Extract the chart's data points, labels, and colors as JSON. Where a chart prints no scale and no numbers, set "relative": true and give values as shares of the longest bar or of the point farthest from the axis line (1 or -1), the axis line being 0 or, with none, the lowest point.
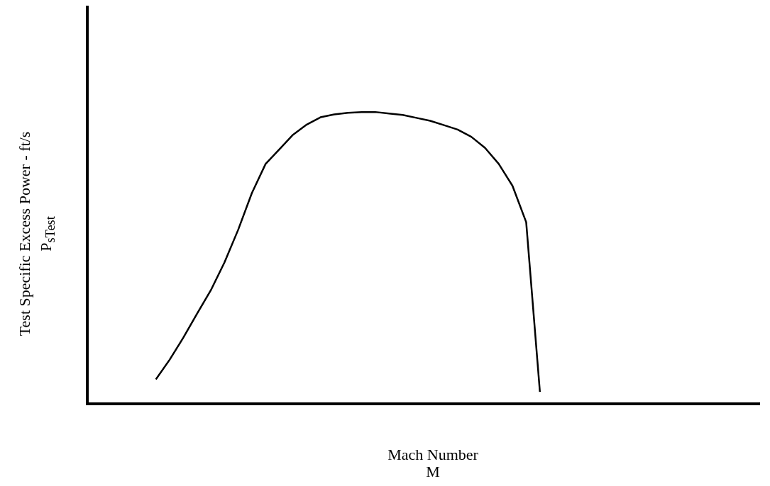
{
  "chart_data": {
    "type": "line",
    "relative": true,
    "xlabel": "Mach Number\nM",
    "ylabel": "Test Specific Excess Power - ft/s\nP$_{s}$$_{Test}$",
    "grid": false,
    "legend": false,
    "marker": "none",
    "line_style": "solid",
    "categories": [
      null,
      null,
      null,
      null,
      null,
      null,
      null,
      null,
      null,
      null,
      null,
      null,
      null,
      null,
      null,
      null,
      null,
      null,
      null,
      null,
      null,
      null,
      null,
      null,
      null,
      null,
      null,
      null,
      null,
      null,
      null,
      null,
      null,
      null,
      null,
      null,
      null,
      null,
      null,
      null,
      null,
      null,
      null,
      null,
      null,
      null,
      null,
      null,
      null,
      null
    ],
    "series": [
      {
        "color": "#000000",
        "values": [
          null,
          null,
          null,
          null,
          null,
          0.083,
          0.15,
          0.226,
          0.308,
          0.388,
          0.484,
          0.596,
          0.722,
          0.822,
          0.872,
          0.922,
          0.957,
          0.982,
          0.992,
          0.997,
          1,
          1,
          0.995,
          0.99,
          0.98,
          0.97,
          0.955,
          0.94,
          0.915,
          0.877,
          0.822,
          0.747,
          0.622,
          0.04,
          null,
          null,
          null,
          null,
          null,
          null,
          null,
          null,
          null,
          null,
          null,
          null,
          null,
          null,
          null,
          null
        ]
      }
    ]
  }
}
